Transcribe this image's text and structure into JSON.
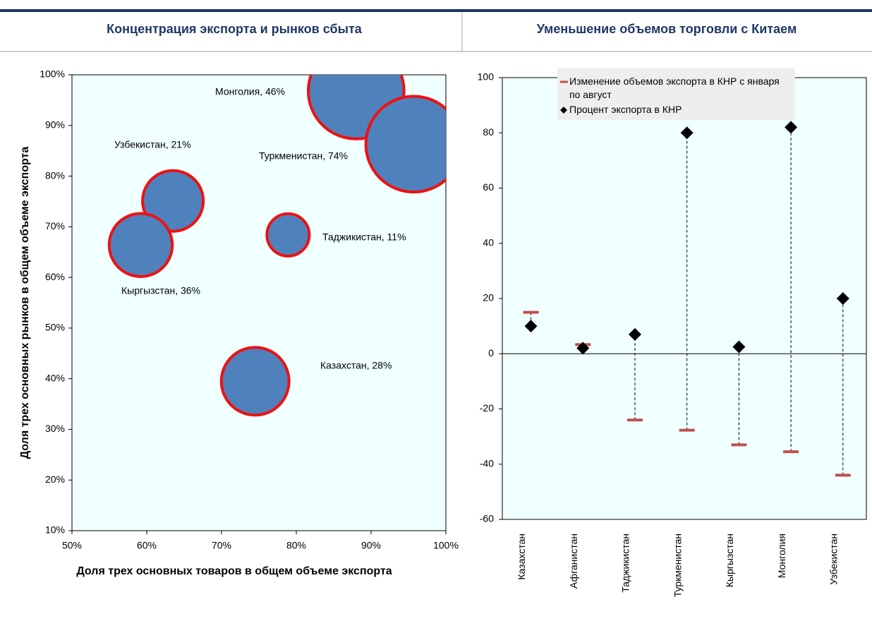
{
  "charts": {
    "left": {
      "header": "Концентрация экспорта и рынков сбыта"
    },
    "right": {
      "header": "Уменьшение объемов торговли с Китаем"
    }
  },
  "chart_data": [
    {
      "type": "bubble",
      "x_label": "Доля трех основных товаров в общем объеме экспорта",
      "y_label": "Доля трех основных рынков в общем объеме экспорта",
      "points": [
        {
          "label": "Монголия, 46%",
          "x": 88,
          "y": 96.8,
          "size": 46
        },
        {
          "label": "Туркменистан, 74%",
          "x": 95.7,
          "y": 86.3,
          "size": 46
        },
        {
          "label": "Узбекистан, 21%",
          "x": 63.5,
          "y": 75.1,
          "size": 18.5
        },
        {
          "label": "Кыргызстан, 36%",
          "x": 59.2,
          "y": 66.4,
          "size": 20
        },
        {
          "label": "Таджикистан, 11%",
          "x": 78.9,
          "y": 68.4,
          "size": 9
        },
        {
          "label": "Казахстан, 28%",
          "x": 74.5,
          "y": 39.5,
          "size": 23
        }
      ],
      "color": "#4f81bd",
      "edge_color": "#ee1111",
      "xlim": [
        50,
        100
      ],
      "xticks": [
        {
          "value": 50,
          "label": "50%"
        },
        {
          "value": 60,
          "label": "60%"
        },
        {
          "value": 70,
          "label": "70%"
        },
        {
          "value": 80,
          "label": "80%"
        },
        {
          "value": 90,
          "label": "90%"
        },
        {
          "value": 100,
          "label": "100%"
        }
      ],
      "ylim": [
        10,
        100
      ],
      "yticks": [
        {
          "value": 10,
          "label": "10%"
        },
        {
          "value": 20,
          "label": "20%"
        },
        {
          "value": 30,
          "label": "30%"
        },
        {
          "value": 40,
          "label": "40%"
        },
        {
          "value": 50,
          "label": "50%"
        },
        {
          "value": 60,
          "label": "60%"
        },
        {
          "value": 70,
          "label": "70%"
        },
        {
          "value": 80,
          "label": "80%"
        },
        {
          "value": 90,
          "label": "90%"
        },
        {
          "value": 100,
          "label": "100%"
        }
      ]
    },
    {
      "type": "dot_range",
      "categories": [
        "Казахстан",
        "Афганистан",
        "Таджикистан",
        "Туркменистан",
        "Кыргызстан",
        "Монголия",
        "Узбекистан"
      ],
      "series": [
        {
          "name": "Изменение объемов экспорта в КНР с января по август",
          "color": "#c0504d",
          "marker": "dash",
          "values": [
            15,
            3.3,
            -24,
            -27.7,
            -33,
            -35.5,
            -44
          ]
        },
        {
          "name": "Процент экспорта в КНР",
          "color": "#000000",
          "marker": "diamond",
          "values": [
            10,
            2,
            7,
            80,
            2.5,
            82,
            20
          ]
        }
      ],
      "ylim": [
        -60,
        100
      ],
      "yticks": [
        -60,
        -40,
        -20,
        0,
        20,
        40,
        60,
        80,
        100
      ],
      "legend": "top-left"
    }
  ]
}
